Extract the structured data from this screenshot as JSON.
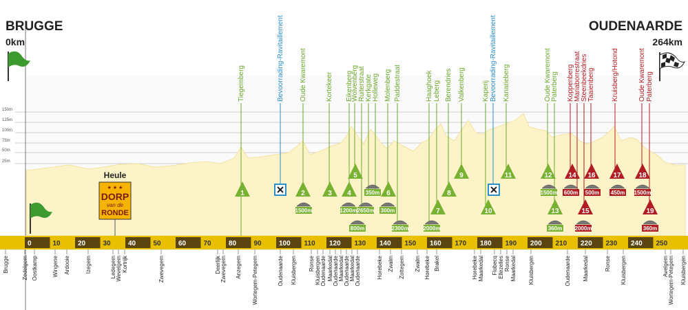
{
  "start": {
    "city": "BRUGGE",
    "distance": "0km"
  },
  "finish": {
    "city": "OUDENAARDE",
    "distance": "264km"
  },
  "altitude_labels": [
    "150m",
    "125m",
    "100m",
    "75m",
    "50m",
    "25m"
  ],
  "km_labels": [
    0,
    10,
    20,
    30,
    40,
    50,
    60,
    70,
    80,
    90,
    100,
    110,
    120,
    130,
    140,
    150,
    160,
    170,
    180,
    190,
    200,
    210,
    220,
    230,
    240,
    250
  ],
  "top_labels": [
    "Tiegemberg",
    "Bevoorrading-Ravitaillement",
    "Oude Kwaremont",
    "Kortekeer",
    "Eikenberg",
    "Wolvenberg",
    "Ruiterstraat",
    "Kerkgate",
    "Holleweg",
    "Molenberg",
    "Paddestraat",
    "Haaghoek",
    "Leberg",
    "Berendries",
    "Valkenberg",
    "Kaperij",
    "Bevoorrading-Ravitaillement",
    "Kanarieberg",
    "Oude Kwaremont",
    "Paterberg",
    "Koppenberg",
    "Mariaborrestraat",
    "Steenbeekdries",
    "Taaienberg",
    "Kruisberg/Hotond",
    "Oude Kwaremont",
    "Paterberg"
  ],
  "climb_numbers": [
    1,
    2,
    3,
    4,
    5,
    6,
    7,
    8,
    9,
    10,
    11,
    12,
    13,
    14,
    15,
    16,
    17,
    18,
    19
  ],
  "cobble_lengths": [
    "1500m",
    "1200m",
    "2650m",
    "800m",
    "350m",
    "300m",
    "2300m",
    "2000m",
    "1500m",
    "360m",
    "600m",
    "500m",
    "2000m",
    "450m",
    "1500m",
    "360m"
  ],
  "towns": [
    "Brugge",
    "Zedelgem",
    "Oostkamp",
    "Wingene",
    "Ardooie",
    "Izegem",
    "Ledegem",
    "Wevelgem",
    "Kortrijk",
    "Zwevegem",
    "Deerlijk",
    "Zwevegem",
    "Anzegem",
    "Wortegem-Petegem",
    "Oudenaarde",
    "Kluisbergen",
    "Ronse",
    "Kluisbergen",
    "Oudenaarde",
    "Maarkedal",
    "Oudenaarde",
    "Maarkedal",
    "Oudenaarde",
    "Maarkedal",
    "Oudenaarde",
    "Horebeke",
    "Zwalm",
    "Zottegem",
    "Zwalm",
    "Horebeke",
    "Brakel",
    "Horebeke",
    "Maarkedal",
    "Flobecq",
    "Ellezelles",
    "Ronse",
    "Maarkedal",
    "Kluisbergen",
    "Oudenaarde",
    "Maarkedal",
    "Ronse",
    "Kluisbergen",
    "Avelgem",
    "Wortegem-Petegem",
    "Kluisbergen"
  ],
  "heule": {
    "town": "Heule",
    "sign": [
      "DORP",
      "van de",
      "RONDE"
    ]
  }
}
